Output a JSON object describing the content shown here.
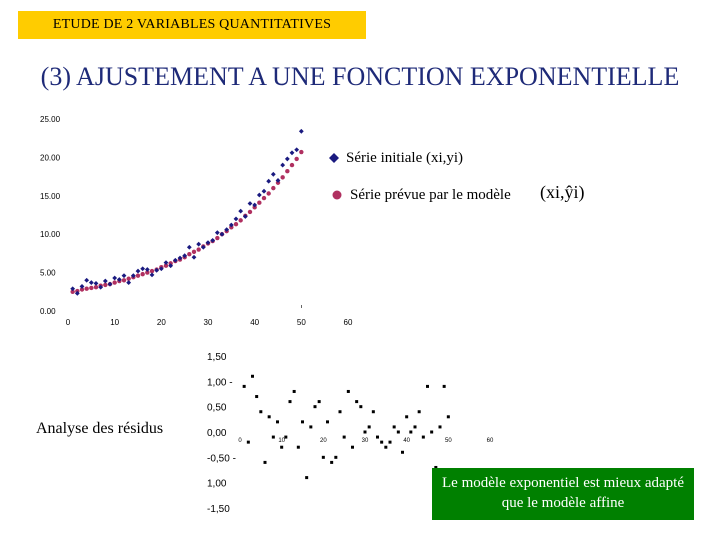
{
  "header": {
    "label": "ETUDE DE 2 VARIABLES QUANTITATIVES"
  },
  "title": "(3) AJUSTEMENT A UNE FONCTION EXPONENTIELLE",
  "legend": {
    "initial": "Série initiale (xi,yi)",
    "predicted": "Série prévue par le modèle",
    "predicted_formula": "(xi,ŷi)"
  },
  "residual_label": "Analyse des résidus",
  "conclusion": "Le modèle exponentiel est mieux adapté que le modèle affine",
  "colors": {
    "initial": "#1a1a80",
    "predicted": "#b03060",
    "title": "#1e2a78",
    "badge": "#ffcc00",
    "conclusion": "#008000"
  },
  "chart_data": [
    {
      "type": "scatter",
      "title": "",
      "xlim": [
        0,
        60
      ],
      "ylim": [
        0,
        25
      ],
      "x_ticks": [
        "0",
        "10",
        "20",
        "30",
        "40",
        "50",
        "60"
      ],
      "y_ticks": [
        "0.00",
        "5.00",
        "10.00",
        "15.00",
        "20.00",
        "25.00"
      ],
      "series": [
        {
          "name": "Série initiale (xi,yi)",
          "marker": "diamond",
          "x": [
            1,
            2,
            3,
            4,
            5,
            6,
            7,
            8,
            9,
            10,
            11,
            12,
            13,
            14,
            15,
            16,
            17,
            18,
            19,
            20,
            21,
            22,
            23,
            24,
            25,
            26,
            27,
            28,
            29,
            30,
            31,
            32,
            33,
            34,
            35,
            36,
            37,
            38,
            39,
            40,
            41,
            42,
            43,
            44,
            45,
            46,
            47,
            48,
            49,
            50
          ],
          "y": [
            2.9,
            2.3,
            3.2,
            4.0,
            3.7,
            3.6,
            3.1,
            3.9,
            3.5,
            4.3,
            4.1,
            4.6,
            3.7,
            4.6,
            5.2,
            5.5,
            5.4,
            4.7,
            5.3,
            5.5,
            6.3,
            5.9,
            6.6,
            6.9,
            7.2,
            8.3,
            7.0,
            8.7,
            8.3,
            8.9,
            9.2,
            10.2,
            10.0,
            10.6,
            11.2,
            12.0,
            13.0,
            12.3,
            14.0,
            13.8,
            15.1,
            15.6,
            16.9,
            17.8,
            17.0,
            19.0,
            19.8,
            20.6,
            21.0,
            23.4
          ]
        },
        {
          "name": "Série prévue par le modèle",
          "marker": "circle",
          "x": [
            1,
            2,
            3,
            4,
            5,
            6,
            7,
            8,
            9,
            10,
            11,
            12,
            13,
            14,
            15,
            16,
            17,
            18,
            19,
            20,
            21,
            22,
            23,
            24,
            25,
            26,
            27,
            28,
            29,
            30,
            31,
            32,
            33,
            34,
            35,
            36,
            37,
            38,
            39,
            40,
            41,
            42,
            43,
            44,
            45,
            46,
            47,
            48,
            49,
            50
          ],
          "y": [
            2.5,
            2.6,
            2.8,
            2.9,
            3.0,
            3.1,
            3.3,
            3.4,
            3.5,
            3.7,
            3.9,
            4.0,
            4.2,
            4.4,
            4.6,
            4.8,
            5.0,
            5.2,
            5.4,
            5.7,
            5.9,
            6.2,
            6.5,
            6.7,
            7.0,
            7.4,
            7.7,
            8.0,
            8.4,
            8.8,
            9.1,
            9.5,
            10.0,
            10.4,
            10.9,
            11.3,
            11.8,
            12.4,
            12.9,
            13.5,
            14.1,
            14.7,
            15.3,
            16.0,
            16.7,
            17.4,
            18.2,
            19.0,
            19.8,
            20.7
          ]
        }
      ]
    },
    {
      "type": "scatter",
      "title": "",
      "xlim": [
        0,
        60
      ],
      "ylim": [
        -1.5,
        1.5
      ],
      "x_ticks": [
        "0",
        "10",
        "20",
        "30",
        "40",
        "50",
        "60"
      ],
      "y_ticks": [
        "1,50",
        "1,00 -",
        "0,50",
        "0,00",
        "-0,50 -",
        "1,00",
        "-1,50"
      ],
      "series": [
        {
          "name": "Résidus",
          "marker": "dot",
          "x": [
            1,
            2,
            3,
            4,
            5,
            6,
            7,
            8,
            9,
            10,
            11,
            12,
            13,
            14,
            15,
            16,
            17,
            18,
            19,
            20,
            21,
            22,
            23,
            24,
            25,
            26,
            27,
            28,
            29,
            30,
            31,
            32,
            33,
            34,
            35,
            36,
            37,
            38,
            39,
            40,
            41,
            42,
            43,
            44,
            45,
            46,
            47,
            48,
            49,
            50
          ],
          "y": [
            0.9,
            -0.2,
            1.1,
            0.7,
            0.4,
            -0.6,
            0.3,
            -0.1,
            0.2,
            -0.3,
            -0.1,
            0.6,
            0.8,
            -0.3,
            0.2,
            -0.9,
            0.1,
            0.5,
            0.6,
            -0.5,
            0.2,
            -0.6,
            -0.5,
            0.4,
            -0.1,
            0.8,
            -0.3,
            0.6,
            0.5,
            0.0,
            0.1,
            0.4,
            -0.1,
            -0.2,
            -0.3,
            -0.2,
            0.1,
            0.0,
            -0.4,
            0.3,
            0.0,
            0.1,
            0.4,
            -0.1,
            0.9,
            0.0,
            -0.7,
            0.1,
            0.9,
            0.3
          ]
        }
      ]
    }
  ]
}
